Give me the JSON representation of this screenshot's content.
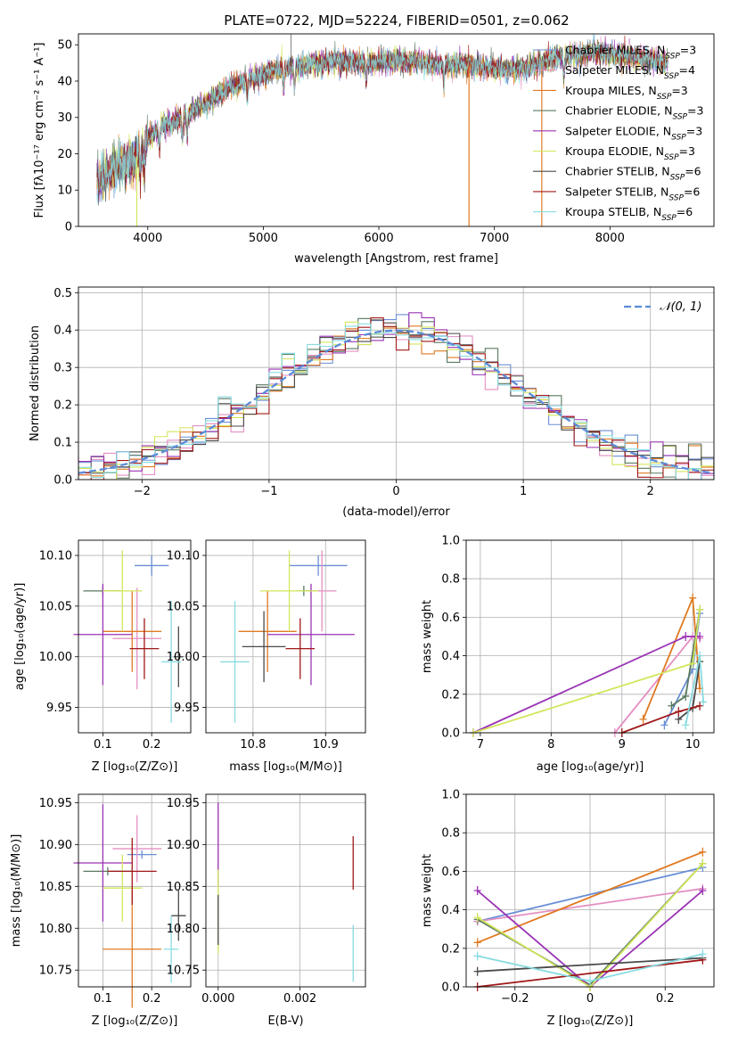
{
  "colors": {
    "Chabrier MILES": "#6a8fd6",
    "Salpeter MILES": "#e48fc2",
    "Kroupa MILES": "#e07a22",
    "Chabrier ELODIE": "#5a7a60",
    "Salpeter ELODIE": "#9a33b4",
    "Kroupa ELODIE": "#d3e65c",
    "Chabrier STELIB": "#4a4a4a",
    "Salpeter STELIB": "#a01818",
    "Kroupa STELIB": "#88dbe0",
    "normal": "#5b8bd8"
  },
  "chart_data": [
    {
      "id": "spectrum",
      "type": "line",
      "title": "PLATE=0722, MJD=52224, FIBERID=0501, z=0.062",
      "xlabel": "wavelength [Angstrom, rest frame]",
      "ylabel": "Flux [fλ10⁻¹⁷ erg cm⁻² s⁻¹ A⁻¹]",
      "xlim": [
        3400,
        8900
      ],
      "ylim": [
        0,
        53
      ],
      "xticks": [
        4000,
        5000,
        6000,
        7000,
        8000
      ],
      "yticks": [
        0,
        10,
        20,
        30,
        40,
        50
      ],
      "continuum_x": [
        3550,
        3700,
        3900,
        4000,
        4100,
        4300,
        4500,
        4700,
        4900,
        5100,
        5300,
        5500,
        5700,
        5900,
        6100,
        6300,
        6500,
        6700,
        6900,
        7100,
        7300,
        7500,
        7700,
        7900,
        8100,
        8300,
        8500
      ],
      "continuum_y": [
        12,
        16,
        19,
        24,
        27,
        30,
        34,
        38,
        41,
        43,
        44,
        45,
        45.5,
        45,
        45.5,
        45.5,
        44.5,
        44.5,
        44,
        43,
        44,
        46,
        47.5,
        48,
        47,
        46,
        45
      ],
      "legend": [
        "Chabrier MILES, N_SSP=3",
        "Salpeter MILES, N_SSP=4",
        "Kroupa MILES, N_SSP=3",
        "Chabrier ELODIE, N_SSP=3",
        "Salpeter ELODIE, N_SSP=3",
        "Kroupa ELODIE, N_SSP=3",
        "Chabrier STELIB, N_SSP=6",
        "Salpeter STELIB, N_SSP=6",
        "Kroupa STELIB, N_SSP=6"
      ],
      "legend_names": [
        "Chabrier MILES",
        "Salpeter MILES",
        "Kroupa MILES",
        "Chabrier ELODIE",
        "Salpeter ELODIE",
        "Kroupa ELODIE",
        "Chabrier STELIB",
        "Salpeter STELIB",
        "Kroupa STELIB"
      ],
      "legend_prefix": [
        "Chabrier MILES, N",
        "Salpeter MILES, N",
        "Kroupa MILES, N",
        "Chabrier ELODIE, N",
        "Salpeter ELODIE, N",
        "Kroupa ELODIE, N",
        "Chabrier STELIB, N",
        "Salpeter STELIB, N",
        "Kroupa STELIB, N"
      ],
      "legend_sub": "SSP",
      "legend_n": [
        "=3",
        "=4",
        "=3",
        "=3",
        "=3",
        "=3",
        "=6",
        "=6",
        "=6"
      ],
      "legend_placement": "upper right"
    },
    {
      "id": "residuals",
      "type": "step",
      "xlabel": "(data-model)/error",
      "ylabel": "Normed distribution",
      "xlim": [
        -2.5,
        2.5
      ],
      "ylim": [
        0,
        0.515
      ],
      "xticks": [
        -2,
        -1,
        0,
        1,
        2
      ],
      "yticks": [
        0.0,
        0.1,
        0.2,
        0.3,
        0.4,
        0.5
      ],
      "grid": true,
      "bin_width": 0.1,
      "legend": "𝒩(0, 1)",
      "legend_placement": "upper right"
    },
    {
      "id": "age_vs_Z",
      "type": "errorbar",
      "xlabel": "Z [log₁₀(Z/Z⊙)]",
      "ylabel": "age  [log₁₀(age/yr)]",
      "xlim": [
        0.05,
        0.28
      ],
      "ylim": [
        9.925,
        10.115
      ],
      "xticks": [
        0.1,
        0.2
      ],
      "yticks": [
        9.95,
        10.0,
        10.05,
        10.1
      ],
      "grid": true,
      "points": [
        {
          "series": "Chabrier MILES",
          "x": 0.2,
          "xerr": 0.035,
          "y": 10.09,
          "yerr": 0.01
        },
        {
          "series": "Salpeter MILES",
          "x": 0.17,
          "xerr": 0.05,
          "y": 10.018,
          "yerr": 0.05
        },
        {
          "series": "Kroupa MILES",
          "x": 0.16,
          "xerr": 0.06,
          "y": 10.025,
          "yerr": 0.04
        },
        {
          "series": "Chabrier ELODIE",
          "x": 0.1,
          "xerr": 0.04,
          "y": 10.065,
          "yerr": 0.005
        },
        {
          "series": "Salpeter ELODIE",
          "x": 0.1,
          "xerr": 0.06,
          "y": 10.022,
          "yerr": 0.05
        },
        {
          "series": "Kroupa ELODIE",
          "x": 0.14,
          "xerr": 0.04,
          "y": 10.065,
          "yerr": 0.04
        },
        {
          "series": "Chabrier STELIB",
          "x": 0.255,
          "xerr": 0.01,
          "y": 10.0,
          "yerr": 0.03
        },
        {
          "series": "Salpeter STELIB",
          "x": 0.185,
          "xerr": 0.03,
          "y": 10.008,
          "yerr": 0.03
        },
        {
          "series": "Kroupa STELIB",
          "x": 0.24,
          "xerr": 0.02,
          "y": 9.995,
          "yerr": 0.06
        }
      ]
    },
    {
      "id": "age_vs_mass",
      "type": "errorbar",
      "xlabel": "mass [log₁₀(M/M⊙)]",
      "ylabel": "",
      "xlim": [
        10.735,
        10.955
      ],
      "ylim": [
        9.925,
        10.115
      ],
      "xticks": [
        10.8,
        10.9
      ],
      "yticks": [
        9.95,
        10.0,
        10.05,
        10.1
      ],
      "grid": true,
      "points": [
        {
          "series": "Chabrier MILES",
          "x": 10.89,
          "xerr": 0.04,
          "y": 10.09,
          "yerr": 0.01
        },
        {
          "series": "Salpeter MILES",
          "x": 10.895,
          "xerr": 0.02,
          "y": 10.065,
          "yerr": 0.04
        },
        {
          "series": "Kroupa MILES",
          "x": 10.82,
          "xerr": 0.04,
          "y": 10.025,
          "yerr": 0.04
        },
        {
          "series": "Chabrier ELODIE",
          "x": 10.87,
          "xerr": 0.01,
          "y": 10.065,
          "yerr": 0.005
        },
        {
          "series": "Salpeter ELODIE",
          "x": 10.88,
          "xerr": 0.06,
          "y": 10.022,
          "yerr": 0.05
        },
        {
          "series": "Kroupa ELODIE",
          "x": 10.85,
          "xerr": 0.04,
          "y": 10.065,
          "yerr": 0.04
        },
        {
          "series": "Chabrier STELIB",
          "x": 10.815,
          "xerr": 0.03,
          "y": 10.01,
          "yerr": 0.035
        },
        {
          "series": "Salpeter STELIB",
          "x": 10.865,
          "xerr": 0.02,
          "y": 10.008,
          "yerr": 0.03
        },
        {
          "series": "Kroupa STELIB",
          "x": 10.775,
          "xerr": 0.02,
          "y": 9.995,
          "yerr": 0.06
        }
      ]
    },
    {
      "id": "weight_vs_age",
      "type": "line",
      "xlabel": "age  [log₁₀(age/yr)]",
      "ylabel": "mass weight",
      "xlim": [
        6.8,
        10.3
      ],
      "ylim": [
        0,
        1.0
      ],
      "xticks": [
        7,
        8,
        9,
        10
      ],
      "yticks": [
        0.0,
        0.2,
        0.4,
        0.6,
        0.8,
        1.0
      ],
      "grid": true,
      "series": [
        {
          "name": "Chabrier MILES",
          "x": [
            9.6,
            10.0,
            10.1
          ],
          "y": [
            0.04,
            0.33,
            0.62
          ]
        },
        {
          "name": "Salpeter MILES",
          "x": [
            8.9,
            10.0,
            10.1
          ],
          "y": [
            0.0,
            0.5,
            0.49
          ]
        },
        {
          "name": "Kroupa MILES",
          "x": [
            9.3,
            10.0,
            10.1
          ],
          "y": [
            0.07,
            0.7,
            0.23
          ]
        },
        {
          "name": "Chabrier ELODIE",
          "x": [
            9.7,
            9.9,
            10.1
          ],
          "y": [
            0.14,
            0.19,
            0.64
          ]
        },
        {
          "name": "Salpeter ELODIE",
          "x": [
            6.9,
            9.9,
            10.1
          ],
          "y": [
            0.0,
            0.5,
            0.5
          ]
        },
        {
          "name": "Kroupa ELODIE",
          "x": [
            6.9,
            10.0,
            10.1
          ],
          "y": [
            0.0,
            0.36,
            0.64
          ]
        },
        {
          "name": "Chabrier STELIB",
          "x": [
            9.8,
            10.0,
            10.1
          ],
          "y": [
            0.07,
            0.13,
            0.37
          ]
        },
        {
          "name": "Salpeter STELIB",
          "x": [
            9.0,
            9.8,
            10.1
          ],
          "y": [
            0.0,
            0.11,
            0.14
          ]
        },
        {
          "name": "Kroupa STELIB",
          "x": [
            9.9,
            10.1,
            10.15
          ],
          "y": [
            0.04,
            0.4,
            0.16
          ]
        }
      ]
    },
    {
      "id": "mass_vs_Z",
      "type": "errorbar",
      "xlabel": "Z [log₁₀(Z/Z⊙)]",
      "ylabel": "mass [log₁₀(M/M⊙)]",
      "xlim": [
        0.05,
        0.28
      ],
      "ylim": [
        10.73,
        10.96
      ],
      "xticks": [
        0.1,
        0.2
      ],
      "yticks": [
        10.75,
        10.8,
        10.85,
        10.9,
        10.95
      ],
      "grid": true,
      "points": [
        {
          "series": "Chabrier MILES",
          "x": 0.18,
          "xerr": 0.03,
          "y": 10.888,
          "yerr": 0.005
        },
        {
          "series": "Salpeter MILES",
          "x": 0.17,
          "xerr": 0.05,
          "y": 10.895,
          "yerr": 0.04
        },
        {
          "series": "Kroupa MILES",
          "x": 0.16,
          "xerr": 0.06,
          "y": 10.775,
          "yerr": 0.07
        },
        {
          "series": "Chabrier ELODIE",
          "x": 0.11,
          "xerr": 0.05,
          "y": 10.868,
          "yerr": 0.005
        },
        {
          "series": "Salpeter ELODIE",
          "x": 0.1,
          "xerr": 0.06,
          "y": 10.878,
          "yerr": 0.07
        },
        {
          "series": "Kroupa ELODIE",
          "x": 0.14,
          "xerr": 0.04,
          "y": 10.848,
          "yerr": 0.04
        },
        {
          "series": "Chabrier STELIB",
          "x": 0.255,
          "xerr": 0.015,
          "y": 10.815,
          "yerr": 0.03
        },
        {
          "series": "Salpeter STELIB",
          "x": 0.16,
          "xerr": 0.05,
          "y": 10.868,
          "yerr": 0.04
        },
        {
          "series": "Kroupa STELIB",
          "x": 0.24,
          "xerr": 0.015,
          "y": 10.775,
          "yerr": 0.04
        }
      ]
    },
    {
      "id": "mass_vs_ebv",
      "type": "errorbar",
      "xlabel": "E(B-V)",
      "ylabel": "",
      "xlim": [
        -0.0003,
        0.0036
      ],
      "ylim": [
        10.73,
        10.96
      ],
      "xticks": [
        0.0,
        0.002
      ],
      "xticklabels": [
        "0.000",
        "0.002"
      ],
      "yticks": [
        10.75,
        10.8,
        10.85,
        10.9,
        10.95
      ],
      "grid": true,
      "points": [
        {
          "series": "Salpeter ELODIE",
          "x": 0.0,
          "xerr": 0.0,
          "y": 10.9,
          "yerr": 0.05
        },
        {
          "series": "Kroupa ELODIE",
          "x": 0.0,
          "xerr": 0.0,
          "y": 10.82,
          "yerr": 0.05
        },
        {
          "series": "Chabrier STELIB",
          "x": 0.0,
          "xerr": 0.0,
          "y": 10.81,
          "yerr": 0.03
        },
        {
          "series": "Salpeter STELIB",
          "x": 0.0033,
          "xerr": 0.0,
          "y": 10.878,
          "yerr": 0.032
        },
        {
          "series": "Kroupa STELIB",
          "x": 0.0033,
          "xerr": 0.0,
          "y": 10.77,
          "yerr": 0.034
        }
      ]
    },
    {
      "id": "weight_vs_Z",
      "type": "line",
      "xlabel": "Z [log₁₀(Z/Z⊙)]",
      "ylabel": "mass weight",
      "xlim": [
        -0.33,
        0.33
      ],
      "ylim": [
        0,
        1.0
      ],
      "xticks": [
        -0.2,
        0.0,
        0.2
      ],
      "yticks": [
        0.0,
        0.2,
        0.4,
        0.6,
        0.8,
        1.0
      ],
      "grid": true,
      "series": [
        {
          "name": "Chabrier MILES",
          "x": [
            -0.3,
            0.3
          ],
          "y": [
            0.34,
            0.62
          ]
        },
        {
          "name": "Salpeter MILES",
          "x": [
            -0.3,
            0.3
          ],
          "y": [
            0.34,
            0.51
          ]
        },
        {
          "name": "Kroupa MILES",
          "x": [
            -0.3,
            0.3
          ],
          "y": [
            0.23,
            0.7
          ]
        },
        {
          "name": "Chabrier ELODIE",
          "x": [
            -0.3,
            0.0,
            0.3
          ],
          "y": [
            0.35,
            0.01,
            0.64
          ]
        },
        {
          "name": "Salpeter ELODIE",
          "x": [
            -0.3,
            0.0,
            0.3
          ],
          "y": [
            0.5,
            0.0,
            0.5
          ]
        },
        {
          "name": "Kroupa ELODIE",
          "x": [
            -0.3,
            0.0,
            0.3
          ],
          "y": [
            0.36,
            0.0,
            0.64
          ]
        },
        {
          "name": "Chabrier STELIB",
          "x": [
            -0.3,
            0.3
          ],
          "y": [
            0.08,
            0.15
          ]
        },
        {
          "name": "Salpeter STELIB",
          "x": [
            -0.3,
            0.3
          ],
          "y": [
            0.0,
            0.14
          ]
        },
        {
          "name": "Kroupa STELIB",
          "x": [
            -0.3,
            0.0,
            0.3
          ],
          "y": [
            0.16,
            0.03,
            0.17
          ]
        }
      ]
    }
  ]
}
